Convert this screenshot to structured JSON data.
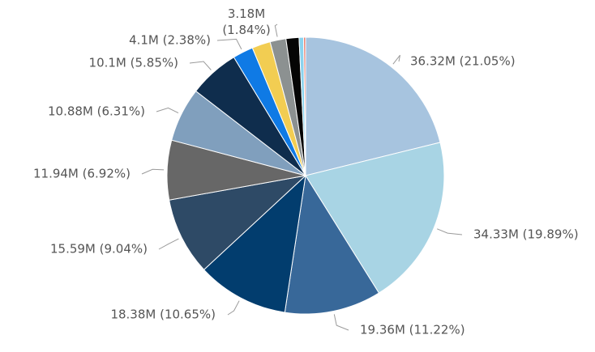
{
  "chart_data": {
    "type": "pie",
    "title": "",
    "legend": "none",
    "slices": [
      {
        "value": 36.32,
        "label": "36.32M (21.05%)",
        "color": "#a7c4df"
      },
      {
        "value": 34.33,
        "label": "34.33M (19.89%)",
        "color": "#a8d4e4"
      },
      {
        "value": 19.36,
        "label": "19.36M (11.22%)",
        "color": "#386899"
      },
      {
        "value": 18.38,
        "label": "18.38M (10.65%)",
        "color": "#023d6e"
      },
      {
        "value": 15.59,
        "label": "15.59M (9.04%)",
        "color": "#2e4a66"
      },
      {
        "value": 11.94,
        "label": "11.94M (6.92%)",
        "color": "#676767"
      },
      {
        "value": 10.88,
        "label": "10.88M (6.31%)",
        "color": "#809fbd"
      },
      {
        "value": 10.1,
        "label": "10.1M (5.85%)",
        "color": "#0f2d4d"
      },
      {
        "value": 4.1,
        "label": "4.1M (2.38%)",
        "color": "#0f7ae5"
      },
      {
        "value": 3.7,
        "label": "",
        "color": "#f2cd52"
      },
      {
        "value": 3.18,
        "label": "3.18M (1.84%)",
        "color": "#8c9191"
      },
      {
        "value": 2.6,
        "label": "",
        "color": "#050505"
      },
      {
        "value": 0.9,
        "label": "",
        "color": "#8bd3ee"
      },
      {
        "value": 0.4,
        "label": "",
        "color": "#e87b6b"
      }
    ]
  }
}
